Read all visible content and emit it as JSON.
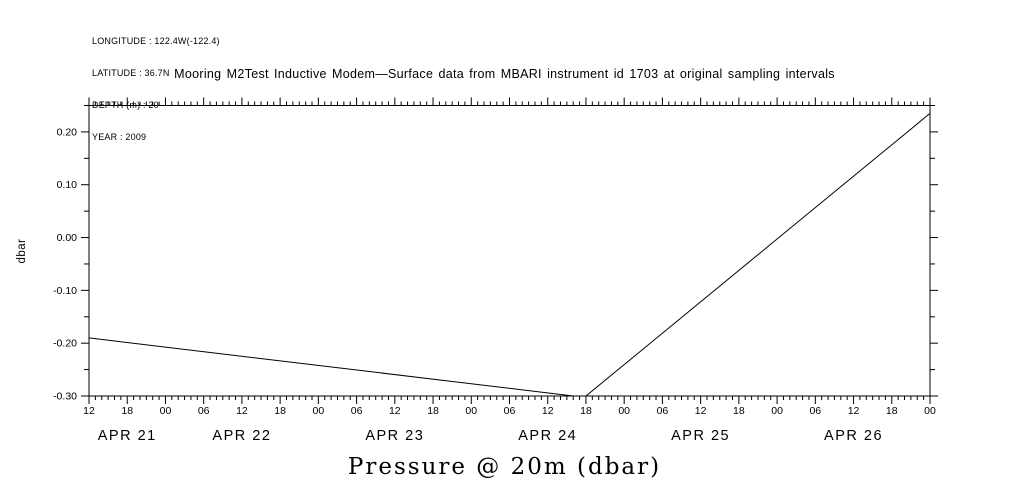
{
  "page": {
    "background": "#ffffff",
    "foreground": "#000000"
  },
  "header": {
    "lines": [
      "LONGITUDE : 122.4W(-122.4)",
      "LATITUDE : 36.7N",
      "DEPTH (m) : 20",
      "YEAR : 2009"
    ]
  },
  "chart_data": {
    "type": "line",
    "title": "Mooring M2Test Inductive Modem—Surface data from MBARI instrument id 1703 at original sampling intervals",
    "xlabel": "Pressure @ 20m (dbar)",
    "ylabel": "dbar",
    "line_color": "#000000",
    "background": "#ffffff",
    "ylim": [
      -0.3,
      0.25
    ],
    "xlim_hours": [
      0,
      132
    ],
    "x_start": "APR 21 12:00",
    "x_end": "APR 27 00:00",
    "x_major_step_hours": 6,
    "x_minor_step_hours": 1,
    "y_minor_step": 0.05,
    "y_ticks": [
      {
        "value": -0.3,
        "label": "-0.30"
      },
      {
        "value": -0.2,
        "label": "-0.20"
      },
      {
        "value": -0.1,
        "label": "-0.10"
      },
      {
        "value": 0.0,
        "label": "0.00"
      },
      {
        "value": 0.1,
        "label": "0.10"
      },
      {
        "value": 0.2,
        "label": "0.20"
      }
    ],
    "x_hour_labels": [
      "12",
      "18",
      "00",
      "06",
      "12",
      "18",
      "00",
      "06",
      "12",
      "18",
      "00",
      "06",
      "12",
      "18",
      "00",
      "06",
      "12",
      "18",
      "00",
      "06",
      "12",
      "18",
      "00"
    ],
    "x_date_labels": [
      {
        "label": "APR 21",
        "center_hour": 6
      },
      {
        "label": "APR 22",
        "center_hour": 24
      },
      {
        "label": "APR 23",
        "center_hour": 48
      },
      {
        "label": "APR 24",
        "center_hour": 72
      },
      {
        "label": "APR 25",
        "center_hour": 96
      },
      {
        "label": "APR 26",
        "center_hour": 120
      }
    ],
    "series": [
      {
        "name": "pressure",
        "points_hour_value": [
          [
            0,
            -0.19
          ],
          [
            76,
            -0.3
          ],
          [
            78,
            -0.3
          ],
          [
            132,
            0.235
          ]
        ]
      }
    ],
    "grid": false,
    "legend": "none"
  }
}
